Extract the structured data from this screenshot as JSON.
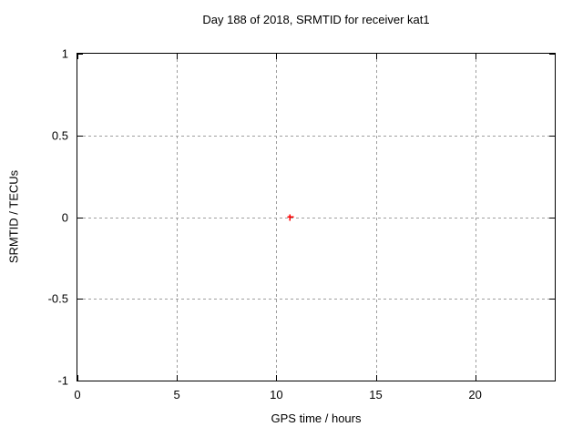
{
  "chart_data": {
    "type": "scatter",
    "title": "Day 188 of 2018, SRMTID for receiver kat1",
    "xlabel": "GPS time / hours",
    "ylabel": "SRMTID / TECUs",
    "xlim": [
      0,
      24
    ],
    "ylim": [
      -1,
      1
    ],
    "xticks": [
      0,
      5,
      10,
      15,
      20
    ],
    "xtick_labels": [
      "0",
      "5",
      "10",
      "15",
      "20"
    ],
    "yticks": [
      -1,
      -0.5,
      0,
      0.5,
      1
    ],
    "ytick_labels": [
      "-1",
      "-0.5",
      "0",
      "0.5",
      "1"
    ],
    "grid": true,
    "legend": "none",
    "colors": {
      "marker": "#ff0000",
      "grid": "#9e9e9e",
      "border": "#000000",
      "background": "#ffffff"
    },
    "series": [
      {
        "name": "SRMTID",
        "marker": "plus",
        "color": "#ff0000",
        "points": [
          {
            "x": 10.7,
            "y": 0.0
          }
        ]
      }
    ]
  }
}
